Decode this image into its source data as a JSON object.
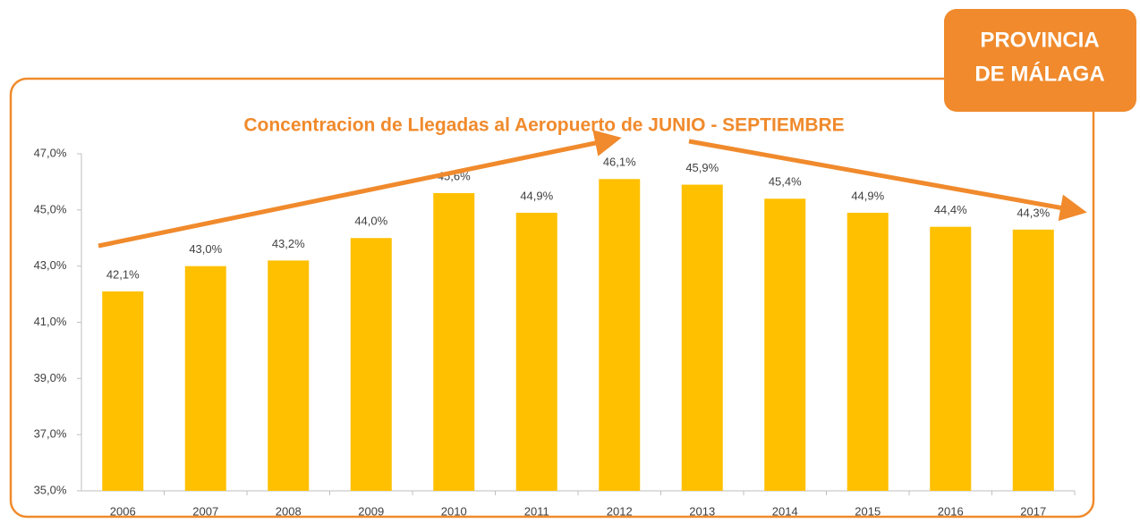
{
  "badge": [
    "PROVINCIA",
    "DE MÁLAGA"
  ],
  "chart_data": {
    "type": "bar",
    "title": "Concentracion de Llegadas al Aeropuerto de JUNIO - SEPTIEMBRE",
    "categories": [
      "2006",
      "2007",
      "2008",
      "2009",
      "2010",
      "2011",
      "2012",
      "2013",
      "2014",
      "2015",
      "2016",
      "2017"
    ],
    "values": [
      42.1,
      43.0,
      43.2,
      44.0,
      45.6,
      44.9,
      46.1,
      45.9,
      45.4,
      44.9,
      44.4,
      44.3
    ],
    "value_labels": [
      "42,1%",
      "43,0%",
      "43,2%",
      "44,0%",
      "45,6%",
      "44,9%",
      "46,1%",
      "45,9%",
      "45,4%",
      "44,9%",
      "44,4%",
      "44,3%"
    ],
    "color": "#ffc000",
    "ylim": [
      35,
      47
    ],
    "yticks": [
      {
        "value": 35,
        "label": "35,0%"
      },
      {
        "value": 37,
        "label": "37,0%"
      },
      {
        "value": 39,
        "label": "39,0%"
      },
      {
        "value": 41,
        "label": "41,0%"
      },
      {
        "value": 43,
        "label": "43,0%"
      },
      {
        "value": 45,
        "label": "45,0%"
      },
      {
        "value": 47,
        "label": "47,0%"
      }
    ],
    "grid": false
  }
}
